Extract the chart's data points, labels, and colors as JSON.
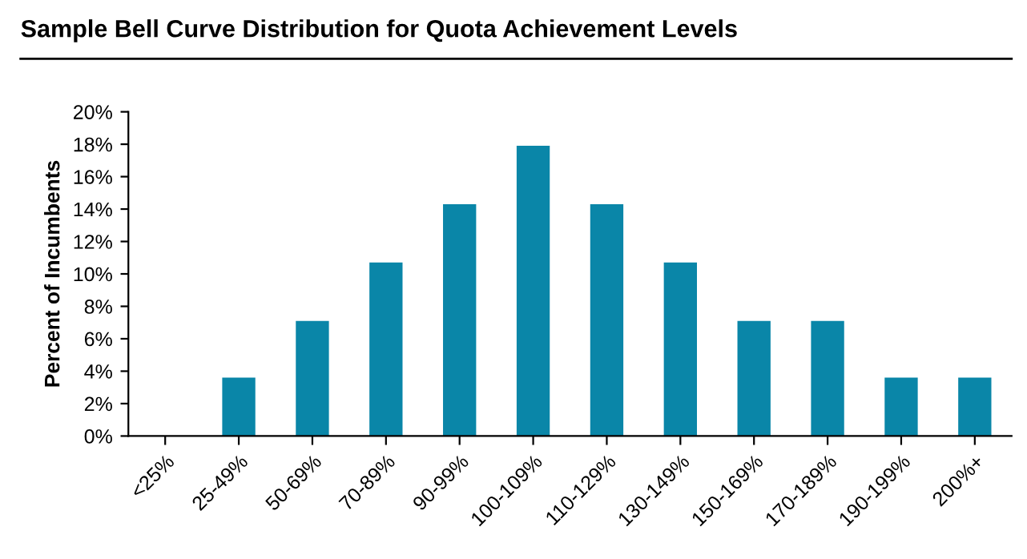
{
  "chart_data": {
    "type": "bar",
    "title": "Sample Bell Curve Distribution for Quota Achievement Levels",
    "ylabel": "Percent of Incumbents",
    "categories": [
      "<25%",
      "25-49%",
      "50-69%",
      "70-89%",
      "90-99%",
      "100-109%",
      "110-129%",
      "130-149%",
      "150-169%",
      "170-189%",
      "190-199%",
      "200%+"
    ],
    "values": [
      0,
      3.6,
      7.1,
      10.7,
      14.3,
      17.9,
      14.3,
      10.7,
      7.1,
      7.1,
      3.6,
      3.6
    ],
    "color": "#0a86a8",
    "ylim": [
      0,
      20
    ],
    "yticks": [
      {
        "value": 0,
        "label": "0%"
      },
      {
        "value": 2,
        "label": "2%"
      },
      {
        "value": 4,
        "label": "4%"
      },
      {
        "value": 6,
        "label": "6%"
      },
      {
        "value": 8,
        "label": "8%"
      },
      {
        "value": 10,
        "label": "10%"
      },
      {
        "value": 12,
        "label": "12%"
      },
      {
        "value": 14,
        "label": "14%"
      },
      {
        "value": 16,
        "label": "16%"
      },
      {
        "value": 18,
        "label": "18%"
      },
      {
        "value": 20,
        "label": "20%"
      }
    ],
    "grid": false
  }
}
